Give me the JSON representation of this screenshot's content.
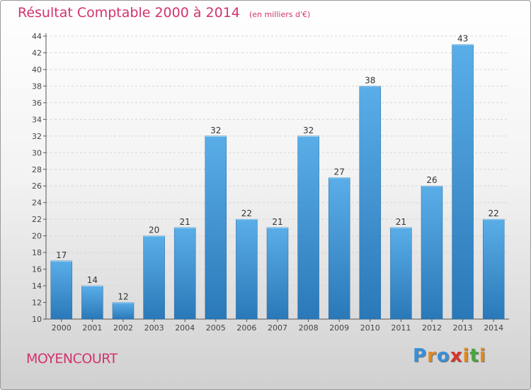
{
  "title": "Résultat Comptable 2000 à 2014",
  "subtitle": "(en milliers d'€)",
  "commune": "MOYENCOURT",
  "logo": {
    "text": "Proxiti",
    "colors": [
      "#3a8fd6",
      "#e08a1e",
      "#3a8fd6",
      "#d9352b",
      "#e08a1e",
      "#4aa63c",
      "#e08a1e"
    ]
  },
  "colors": {
    "bar_light": "#5aaee8",
    "bar_dark": "#2a78b8",
    "accent": "#d2336e"
  },
  "chart_data": {
    "type": "bar",
    "categories": [
      "2000",
      "2001",
      "2002",
      "2003",
      "2004",
      "2005",
      "2006",
      "2007",
      "2008",
      "2009",
      "2010",
      "2011",
      "2012",
      "2013",
      "2014"
    ],
    "values": [
      17,
      14,
      12,
      20,
      21,
      32,
      22,
      21,
      32,
      27,
      38,
      21,
      26,
      43,
      22
    ],
    "ylim": [
      10,
      44
    ],
    "yticks": [
      10,
      12,
      14,
      16,
      18,
      20,
      22,
      24,
      26,
      28,
      30,
      32,
      34,
      36,
      38,
      40,
      42,
      44
    ],
    "grid": true,
    "data_labels": true
  }
}
